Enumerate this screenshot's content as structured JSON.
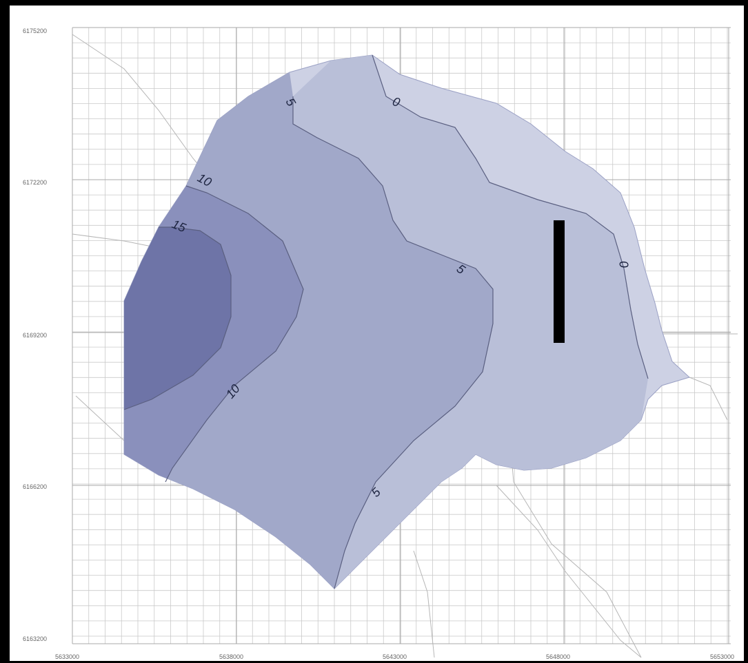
{
  "map": {
    "y_ticks": [
      "6175200",
      "6172200",
      "6169200",
      "6166200",
      "6163200"
    ],
    "x_ticks": [
      "5633000",
      "5638000",
      "5643000",
      "5648000",
      "5653000"
    ],
    "contour_labels": {
      "c0_top": "0",
      "c0_right": "0",
      "c5_top": "5",
      "c5_mid": "5",
      "c5_bottom": "5",
      "c10_top": "10",
      "c10_bottom": "10",
      "c15": "15"
    },
    "colors": {
      "band_0_5": "#b9bfd8",
      "band_5_10": "#a1a8c9",
      "band_10_15": "#8a90bc",
      "band_15_plus": "#6e74a7",
      "outer": "#cdd1e4",
      "grid": "#c9c9c9",
      "contour_line": "#5a5f80",
      "marker": "#000000"
    }
  }
}
